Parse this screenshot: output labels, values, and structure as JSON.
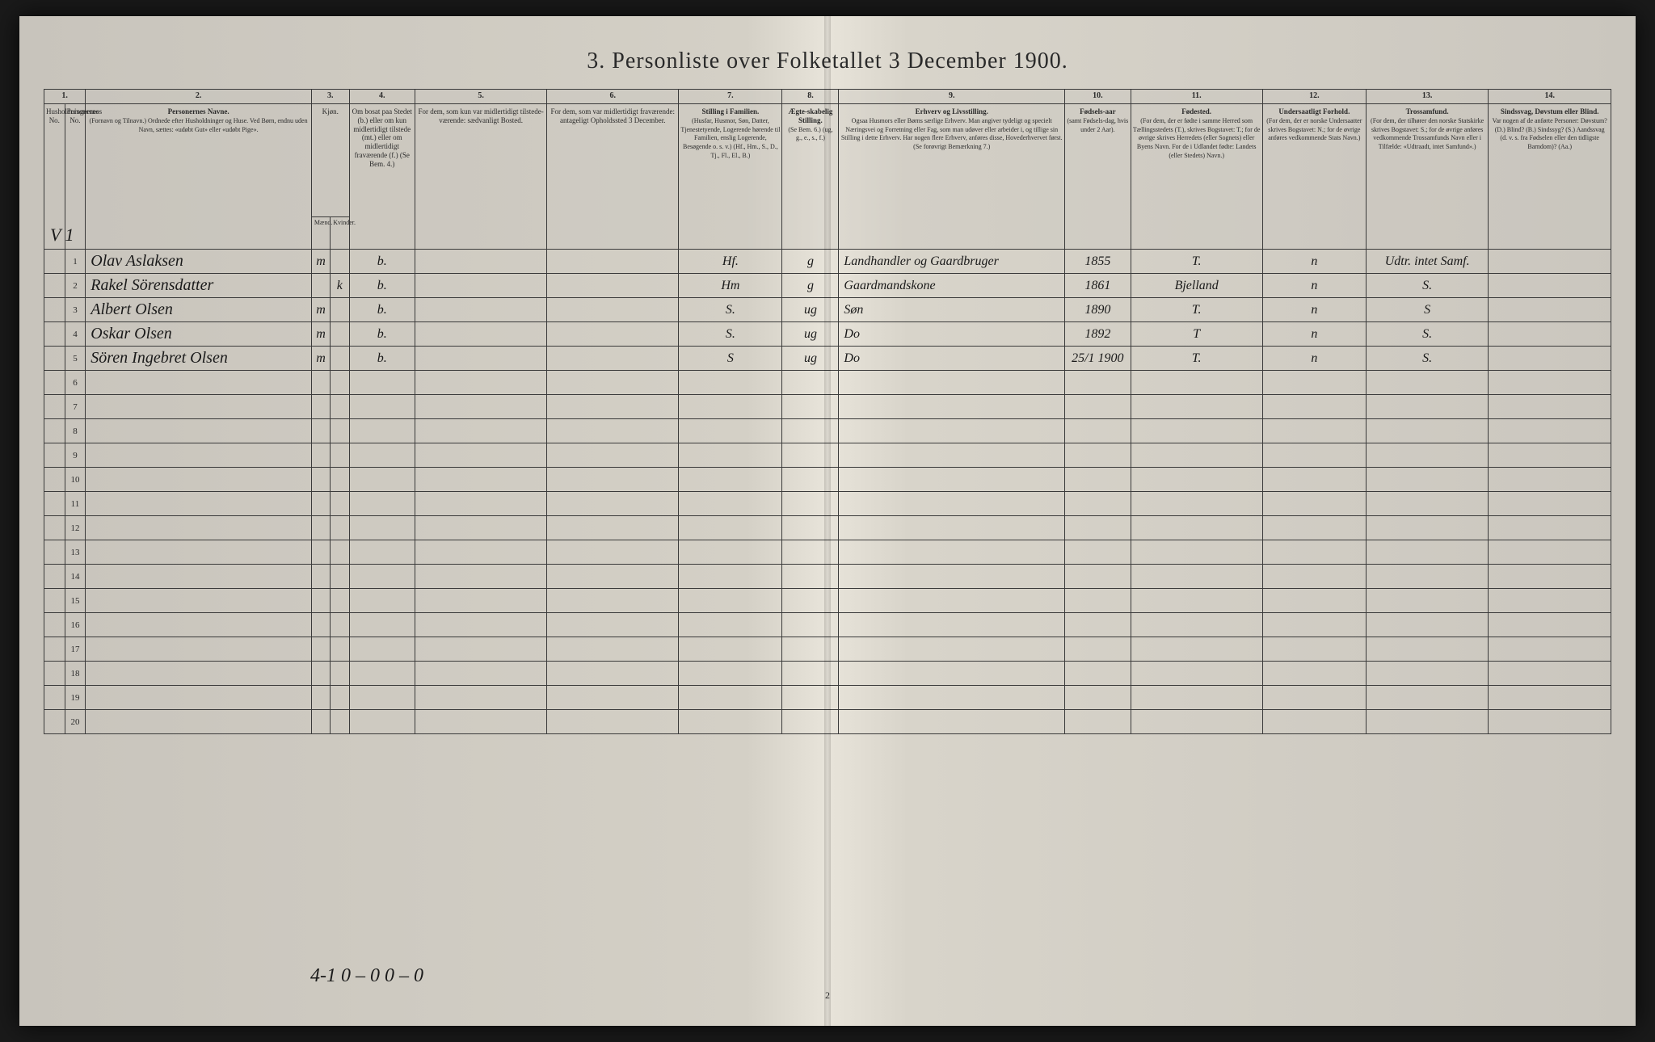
{
  "title": "3. Personliste over Folketallet 3 December 1900.",
  "margin_mark": "V 1",
  "footer_note": "4-1  0 – 0    0 – 0",
  "page_number": "2",
  "columns": {
    "c1": {
      "num": "1.",
      "text": "Husholdningernes No."
    },
    "c1b": {
      "text": "Personernes No."
    },
    "c2": {
      "num": "2.",
      "title": "Personernes Navne.",
      "sub": "(Fornavn og Tilnavn.)\nOrdnede efter Husholdninger og Huse.\nVed Børn, endnu uden Navn, sættes: «udøbt Gut»\neller «udøbt Pige»."
    },
    "c3": {
      "num": "3.",
      "title": "Kjøn.",
      "sub_m": "Mænd.",
      "sub_k": "Kvinder.",
      "mk": "m.  k."
    },
    "c4": {
      "num": "4.",
      "text": "Om bosat paa Stedet (b.) eller om kun midlertidigt tilstede (mt.) eller om midlertidigt fraværende (f.)\n(Se Bem. 4.)"
    },
    "c5": {
      "num": "5.",
      "text": "For dem, som kun var midlertidigt tilstede-værende:\nsædvanligt Bosted."
    },
    "c6": {
      "num": "6.",
      "text": "For dem, som var midlertidigt fraværende:\nantageligt Opholdssted 3 December."
    },
    "c7": {
      "num": "7.",
      "title": "Stilling i Familien.",
      "sub": "(Husfar, Husmor, Søn, Datter, Tjenestetyende, Logerende hørende til Familien, enslig Logerende, Besøgende o. s. v.)\n(Hf., Hm., S., D., Tj., Fl., El., B.)"
    },
    "c8": {
      "num": "8.",
      "title": "Ægte-skabelig Stilling.",
      "sub": "(Se Bem. 6.)\n(ug, g., e., s., f.)"
    },
    "c9": {
      "num": "9.",
      "title": "Erhverv og Livsstilling.",
      "sub": "Ogsaa Husmors eller Børns særlige Erhverv.\nMan angiver tydeligt og specielt Næringsvei og Forretning eller Fag, som man udøver eller arbeider i, og tillige sin Stilling i dette Erhverv.\nHar nogen flere Erhverv, anføres disse, Hovederhvervet først.\n(Se forøvrigt Bemærkning 7.)"
    },
    "c10": {
      "num": "10.",
      "title": "Fødsels-aar",
      "sub": "(samt Fødsels-dag, hvis under 2 Aar)."
    },
    "c11": {
      "num": "11.",
      "title": "Fødested.",
      "sub": "(For dem, der er fødte i samme Herred som Tællingsstedets (T.), skrives Bogstavet: T.; for de øvrige skrives Herredets (eller Sognets) eller Byens Navn.\nFor de i Udlandet fødte: Landets (eller Stedets) Navn.)"
    },
    "c12": {
      "num": "12.",
      "title": "Undersaatligt Forhold.",
      "sub": "(For dem, der er norske Undersaatter skrives Bogstavet: N.; for de øvrige anføres vedkommende Stats Navn.)"
    },
    "c13": {
      "num": "13.",
      "title": "Trossamfund.",
      "sub": "(For dem, der tilhører den norske Statskirke skrives Bogstavet: S.; for de øvrige anføres vedkommende Trossamfunds Navn eller i Tilfælde: «Udtraadt, intet Samfund».)"
    },
    "c14": {
      "num": "14.",
      "title": "Sindssvag, Døvstum eller Blind.",
      "sub": "Var nogen af de anførte Personer:\nDøvstum? (D.)\nBlind? (B.)\nSindssyg? (S.)\nAandssvag (d. v. s. fra Fødselen eller den tidligste Barndom)? (Aa.)"
    }
  },
  "rows": [
    {
      "n": "1",
      "name": "Olav Aslaksen",
      "m": "m",
      "k": "",
      "b": "b.",
      "c7": "Hf.",
      "c8": "g",
      "c9": "Landhandler og Gaardbruger",
      "c10": "1855",
      "c11": "T.",
      "c12": "n",
      "c13": "Udtr. intet Samf."
    },
    {
      "n": "2",
      "name": "Rakel Sörensdatter",
      "m": "",
      "k": "k",
      "b": "b.",
      "c7": "Hm",
      "c8": "g",
      "c9": "Gaardmandskone",
      "c10": "1861",
      "c11": "Bjelland",
      "c12": "n",
      "c13": "S."
    },
    {
      "n": "3",
      "name": "Albert Olsen",
      "m": "m",
      "k": "",
      "b": "b.",
      "c7": "S.",
      "c8": "ug",
      "c9": "Søn",
      "c10": "1890",
      "c11": "T.",
      "c12": "n",
      "c13": "S"
    },
    {
      "n": "4",
      "name": "Oskar Olsen",
      "m": "m",
      "k": "",
      "b": "b.",
      "c7": "S.",
      "c8": "ug",
      "c9": "Do",
      "c10": "1892",
      "c11": "T",
      "c12": "n",
      "c13": "S."
    },
    {
      "n": "5",
      "name": "Sören Ingebret Olsen",
      "m": "m",
      "k": "",
      "b": "b.",
      "c7": "S",
      "c8": "ug",
      "c9": "Do",
      "c10": "25/1 1900",
      "c11": "T.",
      "c12": "n",
      "c13": "S."
    }
  ],
  "empty_rows": [
    "6",
    "7",
    "8",
    "9",
    "10",
    "11",
    "12",
    "13",
    "14",
    "15",
    "16",
    "17",
    "18",
    "19",
    "20"
  ],
  "colors": {
    "paper": "#d4d0c6",
    "ink": "#1a1a1a",
    "border": "#3a3a3a"
  }
}
